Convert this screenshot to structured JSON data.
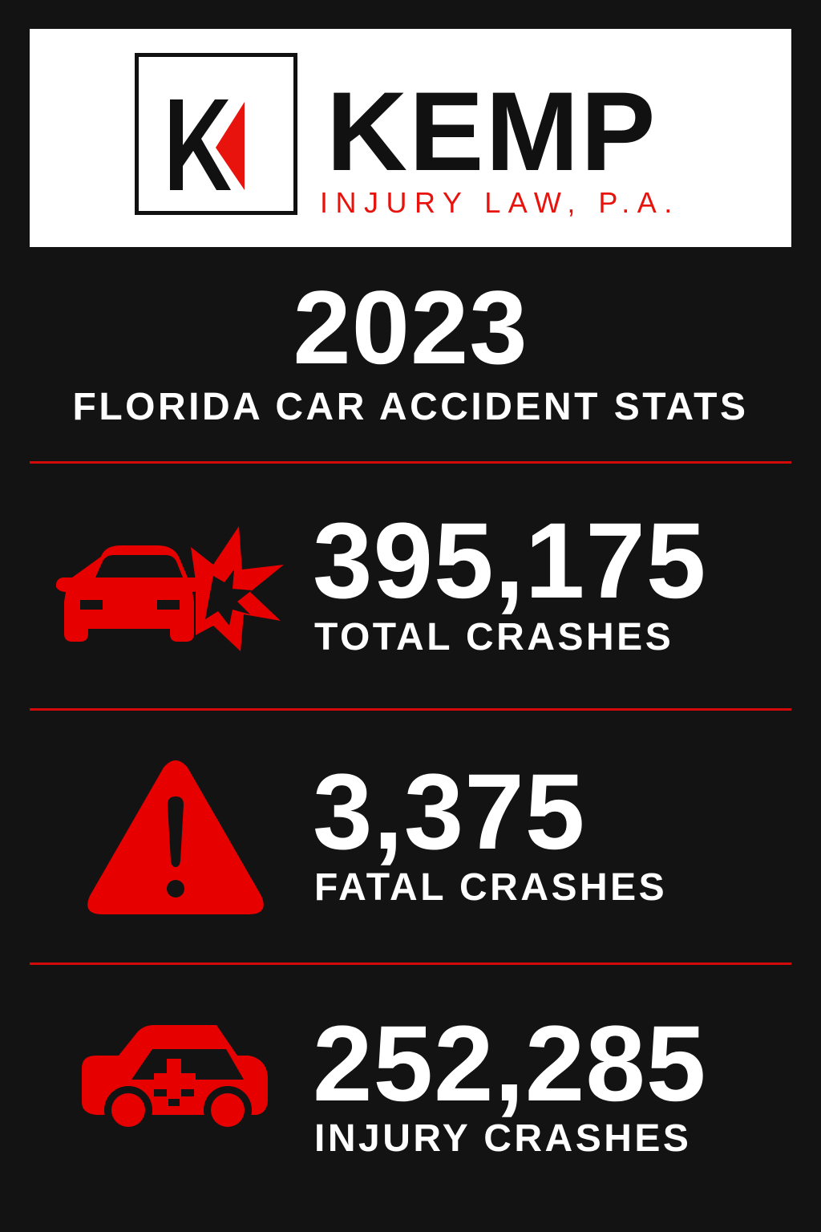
{
  "header": {
    "logo_monogram": "K",
    "brand_name": "KEMP",
    "tagline": "INJURY LAW, P.A."
  },
  "title": {
    "year": "2023",
    "subtitle": "FLORIDA CAR ACCIDENT STATS"
  },
  "stats": [
    {
      "value": "395,175",
      "label": "TOTAL CRASHES",
      "icon": "car-crash-icon"
    },
    {
      "value": "3,375",
      "label": "FATAL CRASHES",
      "icon": "warning-triangle-icon"
    },
    {
      "value": "252,285",
      "label": "INJURY CRASHES",
      "icon": "ambulance-car-icon"
    }
  ],
  "colors": {
    "accent": "#e60000",
    "background": "#131313",
    "text": "#ffffff"
  }
}
